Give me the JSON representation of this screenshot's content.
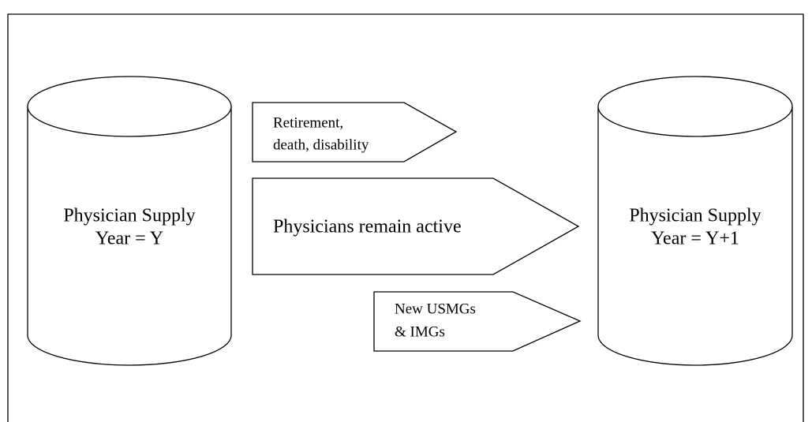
{
  "nodes": [
    {
      "lines": [
        "Physician Supply",
        "Year = Y"
      ]
    },
    {
      "lines": [
        "Physician Supply",
        "Year = Y+1"
      ]
    }
  ],
  "arrows": [
    {
      "lines": [
        "Retirement,",
        "death, disability"
      ]
    },
    {
      "lines": [
        "Physicians remain active"
      ]
    },
    {
      "lines": [
        "New USMGs",
        "& IMGs"
      ]
    }
  ]
}
